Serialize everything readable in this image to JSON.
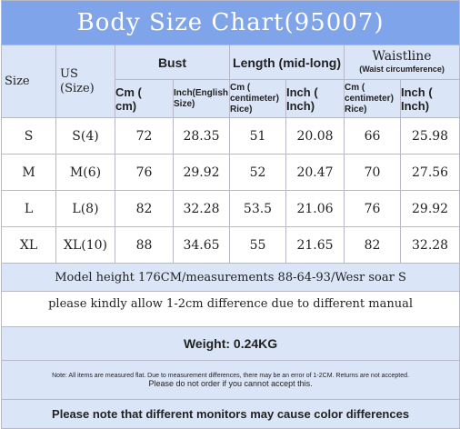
{
  "header": {
    "title": "Body Size Chart(95007)"
  },
  "table": {
    "columns": {
      "size": "Size",
      "us": "US\n(Size)",
      "bust": "Bust",
      "length": "Length (mid-long)",
      "waist": "Waistline",
      "waist_note": "(Waist circumference)",
      "units": [
        "Cm (\ncm)",
        "Inch(English\nSize)",
        "Cm (\ncentimeter)\nRice)",
        "Inch (\nInch)",
        "Cm (\ncentimeter)\nRice)",
        "Inch (\nInch)"
      ]
    },
    "rows": [
      [
        "S",
        "S(4)",
        "72",
        "28.35",
        "51",
        "20.08",
        "66",
        "25.98"
      ],
      [
        "M",
        "M(6)",
        "76",
        "29.92",
        "52",
        "20.47",
        "70",
        "27.56"
      ],
      [
        "L",
        "L(8)",
        "82",
        "32.28",
        "53.5",
        "21.06",
        "76",
        "29.92"
      ],
      [
        "XL",
        "XL(10)",
        "88",
        "34.65",
        "55",
        "21.65",
        "82",
        "32.28"
      ]
    ]
  },
  "footer": {
    "model": "Model height 176CM/measurements 88-64-93/Wesr soar S",
    "allow": "please kindly allow 1-2cm difference due to different manual",
    "weight": "Weight: 0.24KG",
    "note1": "Note: All items are measured flat. Due to measurement differences, there may be an error of 1-2CM. Returns are not accepted.",
    "note2": "Please do not order if you cannot accept this.",
    "monitor": "Please note that different monitors may cause color differences"
  }
}
